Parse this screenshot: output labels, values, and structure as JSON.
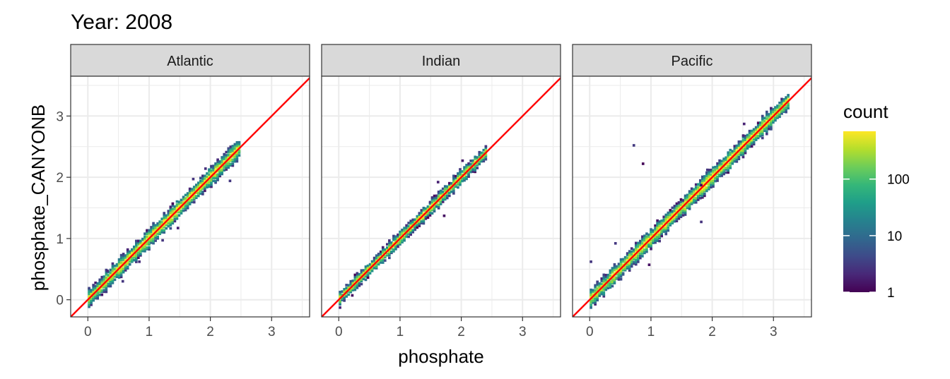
{
  "chart_data": {
    "type": "heatmap",
    "title": "Year: 2008",
    "xlabel": "phosphate",
    "ylabel": "phosphate_CANYONB",
    "xlim": [
      -0.28,
      3.62
    ],
    "ylim": [
      -0.28,
      3.65
    ],
    "x_ticks": [
      "0",
      "1",
      "2",
      "3"
    ],
    "y_ticks": [
      "0",
      "1",
      "2",
      "3"
    ],
    "grid": true,
    "reference_line": {
      "type": "identity",
      "color": "#ff0000"
    },
    "legend": {
      "title": "count",
      "position": "right",
      "scale": "log10",
      "range": [
        1,
        700
      ],
      "breaks": [
        1,
        10,
        100
      ],
      "break_labels": [
        "1",
        "10",
        "100"
      ]
    },
    "colors": {
      "viridis": [
        "#440154",
        "#482878",
        "#3E4A89",
        "#31688E",
        "#26828E",
        "#1F9E89",
        "#35B779",
        "#6DCD59",
        "#B4DE2C",
        "#FDE725"
      ],
      "panel_border": "#333333",
      "strip_fill": "#d9d9d9",
      "grid": "#ebebeb"
    },
    "panels": [
      {
        "label": "Atlantic",
        "range": [
          0.0,
          2.45
        ],
        "spread": 0.055,
        "peak": 650,
        "outliers": [
          [
            0.55,
            0.28
          ],
          [
            0.82,
            0.6
          ],
          [
            1.45,
            1.15
          ],
          [
            1.9,
            2.12
          ],
          [
            1.7,
            1.95
          ],
          [
            2.3,
            1.92
          ],
          [
            0.3,
            0.45
          ],
          [
            1.2,
            0.95
          ]
        ]
      },
      {
        "label": "Indian",
        "range": [
          0.0,
          2.4
        ],
        "spread": 0.035,
        "peak": 600,
        "outliers": [
          [
            1.7,
            1.35
          ],
          [
            1.6,
            1.9
          ],
          [
            0.2,
            0.05
          ],
          [
            2.0,
            2.25
          ]
        ]
      },
      {
        "label": "Pacific",
        "range": [
          0.0,
          3.25
        ],
        "spread": 0.08,
        "peak": 700,
        "outliers": [
          [
            0.85,
            2.2
          ],
          [
            0.7,
            2.5
          ],
          [
            0.0,
            0.6
          ],
          [
            1.8,
            1.25
          ],
          [
            1.5,
            1.6
          ],
          [
            1.8,
            1.85
          ],
          [
            2.5,
            2.85
          ],
          [
            0.95,
            0.55
          ],
          [
            0.4,
            0.9
          ],
          [
            1.9,
            2.1
          ]
        ]
      }
    ]
  }
}
